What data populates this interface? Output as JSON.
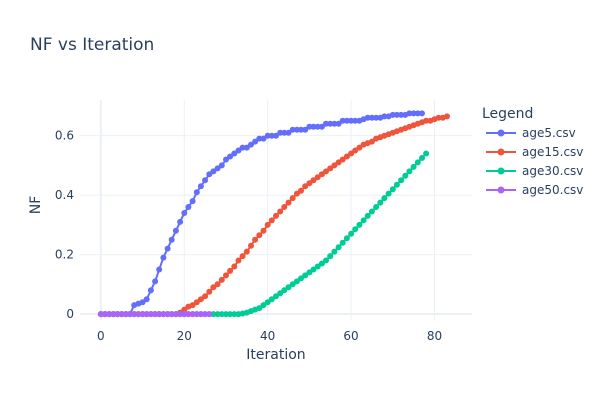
{
  "chart_data": {
    "type": "line",
    "title": "NF vs Iteration",
    "xlabel": "Iteration",
    "ylabel": "NF",
    "xlim": [
      -5,
      89
    ],
    "ylim": [
      -0.02,
      0.72
    ],
    "xticks": [
      0,
      20,
      40,
      60,
      80
    ],
    "yticks": [
      0,
      0.2,
      0.4,
      0.6
    ],
    "grid": true,
    "legend": {
      "title": "Legend",
      "placement": "right"
    },
    "series": [
      {
        "name": "age5.csv",
        "color": "#636efa",
        "mode": "lines+markers",
        "x": [
          0,
          1,
          2,
          3,
          4,
          5,
          6,
          7,
          8,
          9,
          10,
          11,
          12,
          13,
          14,
          15,
          16,
          17,
          18,
          19,
          20,
          21,
          22,
          23,
          24,
          25,
          26,
          27,
          28,
          29,
          30,
          31,
          32,
          33,
          34,
          35,
          36,
          37,
          38,
          39,
          40,
          41,
          42,
          43,
          44,
          45,
          46,
          47,
          48,
          49,
          50,
          51,
          52,
          53,
          54,
          55,
          56,
          57,
          58,
          59,
          60,
          61,
          62,
          63,
          64,
          65,
          66,
          67,
          68,
          69,
          70,
          71,
          72,
          73,
          74,
          75,
          76,
          77
        ],
        "y": [
          0,
          0,
          0,
          0,
          0,
          0,
          0,
          0,
          0.03,
          0.035,
          0.04,
          0.05,
          0.08,
          0.11,
          0.15,
          0.19,
          0.22,
          0.25,
          0.28,
          0.31,
          0.34,
          0.36,
          0.38,
          0.41,
          0.43,
          0.45,
          0.47,
          0.48,
          0.49,
          0.5,
          0.52,
          0.53,
          0.54,
          0.55,
          0.56,
          0.56,
          0.57,
          0.58,
          0.59,
          0.59,
          0.6,
          0.6,
          0.6,
          0.61,
          0.61,
          0.61,
          0.62,
          0.62,
          0.62,
          0.62,
          0.63,
          0.63,
          0.63,
          0.63,
          0.64,
          0.64,
          0.64,
          0.64,
          0.65,
          0.65,
          0.65,
          0.65,
          0.65,
          0.655,
          0.66,
          0.66,
          0.66,
          0.66,
          0.665,
          0.665,
          0.67,
          0.67,
          0.67,
          0.67,
          0.675,
          0.675,
          0.675,
          0.675
        ]
      },
      {
        "name": "age15.csv",
        "color": "#ef553b",
        "mode": "lines+markers",
        "x": [
          0,
          1,
          2,
          3,
          4,
          5,
          6,
          7,
          8,
          9,
          10,
          11,
          12,
          13,
          14,
          15,
          16,
          17,
          18,
          19,
          20,
          21,
          22,
          23,
          24,
          25,
          26,
          27,
          28,
          29,
          30,
          31,
          32,
          33,
          34,
          35,
          36,
          37,
          38,
          39,
          40,
          41,
          42,
          43,
          44,
          45,
          46,
          47,
          48,
          49,
          50,
          51,
          52,
          53,
          54,
          55,
          56,
          57,
          58,
          59,
          60,
          61,
          62,
          63,
          64,
          65,
          66,
          67,
          68,
          69,
          70,
          71,
          72,
          73,
          74,
          75,
          76,
          77,
          78,
          79,
          80,
          81,
          82,
          83
        ],
        "y": [
          0,
          0,
          0,
          0,
          0,
          0,
          0,
          0,
          0,
          0,
          0,
          0,
          0,
          0,
          0,
          0,
          0,
          0,
          0,
          0.005,
          0.015,
          0.025,
          0.03,
          0.04,
          0.05,
          0.06,
          0.075,
          0.09,
          0.1,
          0.115,
          0.13,
          0.145,
          0.16,
          0.18,
          0.195,
          0.21,
          0.23,
          0.25,
          0.265,
          0.28,
          0.3,
          0.315,
          0.33,
          0.345,
          0.36,
          0.375,
          0.39,
          0.405,
          0.415,
          0.43,
          0.44,
          0.45,
          0.46,
          0.47,
          0.48,
          0.49,
          0.5,
          0.51,
          0.52,
          0.53,
          0.54,
          0.55,
          0.56,
          0.57,
          0.575,
          0.58,
          0.59,
          0.595,
          0.6,
          0.605,
          0.61,
          0.615,
          0.62,
          0.625,
          0.63,
          0.635,
          0.64,
          0.645,
          0.65,
          0.65,
          0.655,
          0.66,
          0.66,
          0.665
        ]
      },
      {
        "name": "age30.csv",
        "color": "#00cc96",
        "mode": "lines+markers",
        "x": [
          0,
          1,
          2,
          3,
          4,
          5,
          6,
          7,
          8,
          9,
          10,
          11,
          12,
          13,
          14,
          15,
          16,
          17,
          18,
          19,
          20,
          21,
          22,
          23,
          24,
          25,
          26,
          27,
          28,
          29,
          30,
          31,
          32,
          33,
          34,
          35,
          36,
          37,
          38,
          39,
          40,
          41,
          42,
          43,
          44,
          45,
          46,
          47,
          48,
          49,
          50,
          51,
          52,
          53,
          54,
          55,
          56,
          57,
          58,
          59,
          60,
          61,
          62,
          63,
          64,
          65,
          66,
          67,
          68,
          69,
          70,
          71,
          72,
          73,
          74,
          75,
          76,
          77,
          78
        ],
        "y": [
          0,
          0,
          0,
          0,
          0,
          0,
          0,
          0,
          0,
          0,
          0,
          0,
          0,
          0,
          0,
          0,
          0,
          0,
          0,
          0,
          0,
          0,
          0,
          0,
          0,
          0,
          0,
          0,
          0,
          0,
          0,
          0,
          0,
          0,
          0.002,
          0.005,
          0.01,
          0.015,
          0.02,
          0.03,
          0.04,
          0.05,
          0.06,
          0.07,
          0.08,
          0.09,
          0.1,
          0.11,
          0.12,
          0.13,
          0.14,
          0.15,
          0.16,
          0.17,
          0.18,
          0.195,
          0.21,
          0.225,
          0.24,
          0.255,
          0.27,
          0.285,
          0.3,
          0.315,
          0.33,
          0.345,
          0.36,
          0.375,
          0.39,
          0.405,
          0.42,
          0.435,
          0.45,
          0.465,
          0.48,
          0.495,
          0.51,
          0.525,
          0.54
        ]
      },
      {
        "name": "age50.csv",
        "color": "#ab63fa",
        "mode": "lines+markers",
        "x": [
          0,
          1,
          2,
          3,
          4,
          5,
          6,
          7,
          8,
          9,
          10,
          11,
          12,
          13,
          14,
          15,
          16,
          17,
          18,
          19,
          20,
          21,
          22,
          23,
          24,
          25,
          26
        ],
        "y": [
          0,
          0,
          0,
          0,
          0,
          0,
          0,
          0,
          0,
          0,
          0,
          0,
          0,
          0,
          0,
          0,
          0,
          0,
          0,
          0,
          0,
          0,
          0,
          0,
          0,
          0,
          0
        ]
      }
    ]
  }
}
